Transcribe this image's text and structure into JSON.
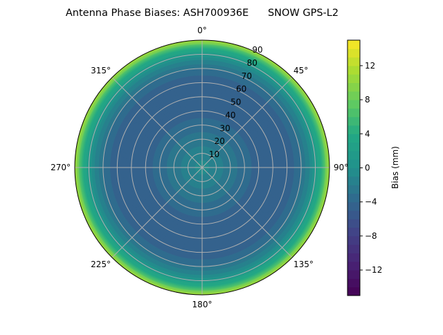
{
  "chart_data": {
    "type": "heatmap",
    "projection": "polar",
    "title": "Antenna Phase Biases: ASH700936E      SNOW GPS-L2",
    "theta_direction": "clockwise",
    "theta_zero": "top",
    "theta_ticks": [
      "0°",
      "45°",
      "90°",
      "135°",
      "180°",
      "225°",
      "270°",
      "315°"
    ],
    "r_ticks": [
      "10",
      "20",
      "30",
      "40",
      "50",
      "60",
      "70",
      "80",
      "90"
    ],
    "r_range": [
      0,
      90
    ],
    "grid": true,
    "zenith_deg": [
      0,
      5,
      10,
      15,
      20,
      25,
      30,
      35,
      40,
      45,
      50,
      55,
      60,
      65,
      70,
      75,
      80,
      85,
      90
    ],
    "bias_mm": [
      -0.5,
      -1,
      -1.5,
      -2,
      -2.5,
      -3,
      -3.5,
      -4,
      -4.5,
      -5,
      -5,
      -5,
      -4.5,
      -4,
      -3,
      -1.5,
      1,
      5,
      11
    ],
    "colorbar": {
      "label": "Bias (mm)",
      "range": [
        -15,
        15
      ],
      "levels": 30,
      "ticks": [
        -12,
        -8,
        -4,
        0,
        4,
        8,
        12
      ],
      "tick_labels": [
        "−12",
        "−8",
        "−4",
        "0",
        "4",
        "8",
        "12"
      ],
      "colormap": "viridis"
    }
  }
}
